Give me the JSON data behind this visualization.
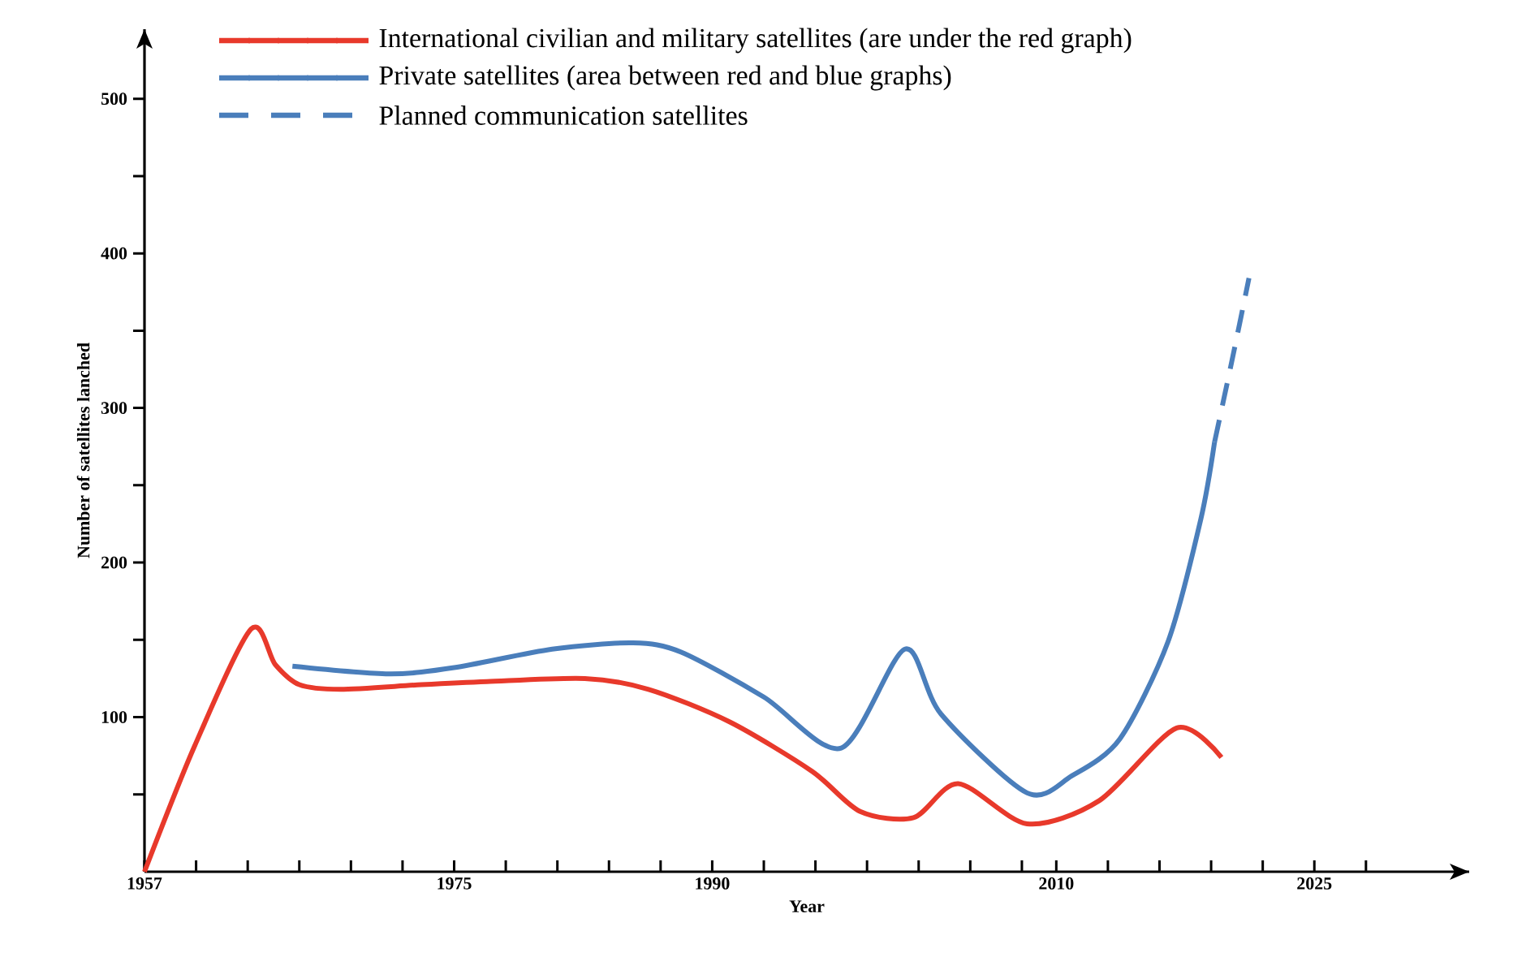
{
  "chart_data": {
    "type": "line",
    "xlabel": "Year",
    "ylabel": "Number of satellites lanched",
    "xlim": [
      1957,
      2034
    ],
    "ylim": [
      0,
      545
    ],
    "xticks": [
      1957,
      {
        "value": 1960,
        "label": null
      },
      {
        "value": 1963,
        "label": null
      },
      {
        "value": 1966,
        "label": null
      },
      {
        "value": 1969,
        "label": null
      },
      {
        "value": 1972,
        "label": null
      },
      1975,
      {
        "value": 1978,
        "label": null
      },
      {
        "value": 1981,
        "label": null
      },
      {
        "value": 1984,
        "label": null
      },
      {
        "value": 1987,
        "label": null
      },
      1990,
      {
        "value": 1993,
        "label": null
      },
      {
        "value": 1996,
        "label": null
      },
      {
        "value": 1999,
        "label": null
      },
      {
        "value": 2002,
        "label": null
      },
      {
        "value": 2005,
        "label": null
      },
      {
        "value": 2008,
        "label": null
      },
      2010,
      {
        "value": 2013,
        "label": null
      },
      {
        "value": 2016,
        "label": null
      },
      {
        "value": 2019,
        "label": null
      },
      {
        "value": 2022,
        "label": null
      },
      2025,
      {
        "value": 2028,
        "label": null
      }
    ],
    "yticks": [
      {
        "value": 50,
        "label": null
      },
      100,
      {
        "value": 150,
        "label": null
      },
      200,
      {
        "value": 250,
        "label": null
      },
      300,
      {
        "value": 350,
        "label": null
      },
      400,
      {
        "value": 450,
        "label": null
      },
      500
    ],
    "legend": "top",
    "grid": false,
    "marker": "none",
    "series": [
      {
        "name": "International civilian and military satellites (are under the red graph)",
        "color": "#e8392b",
        "line_style": "solid",
        "x": [
          1957,
          1959.9,
          1963.2,
          1964.6,
          1966,
          1968.4,
          1973.1,
          1976.9,
          1982.6,
          1986.3,
          1991,
          1995.8,
          1998.6,
          2001.7,
          2004.3,
          2008.3,
          2012.5,
          2017,
          2019.6
        ],
        "values": [
          0,
          81,
          157,
          134,
          121,
          118,
          121,
          123,
          125,
          118,
          97,
          65,
          39,
          35,
          57,
          31,
          46,
          93,
          74
        ]
      },
      {
        "name": "Private satellites (area between red and blue graphs)",
        "color": "#4a7ebb",
        "line_style": "solid",
        "x": [
          1965.6,
          1971.2,
          1975,
          1980.7,
          1985.4,
          1988.2,
          1993,
          1997.5,
          2001.2,
          2003.3,
          2008.3,
          2010.9,
          2013.7,
          2016.5,
          2018.4,
          2019.2
        ],
        "values": [
          133,
          128,
          132,
          144,
          148,
          142,
          113,
          80,
          144,
          102,
          51,
          62,
          86,
          149,
          228,
          278
        ]
      },
      {
        "name": "Planned communication satellites",
        "color": "#4a7ebb",
        "line_style": "dashed",
        "x": [
          2019.2,
          2020.2,
          2021.2
        ],
        "values": [
          278,
          330,
          384
        ]
      }
    ]
  }
}
